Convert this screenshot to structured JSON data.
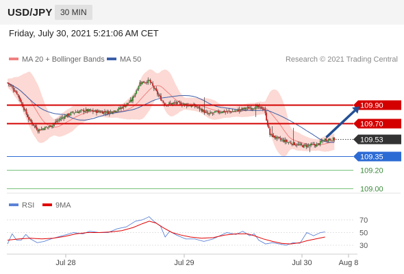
{
  "header": {
    "symbol": "USD/JPY",
    "timeframe": "30 MIN",
    "timestamp": "Friday, July 30, 2021 5:21:06 AM CET"
  },
  "colors": {
    "candle_up": "#2e8b2e",
    "candle_down": "#c42222",
    "bollinger_fill": "#fbd2cd",
    "ma20": "#f08080",
    "ma50": "#3b5ea8",
    "resistance": "#d40000",
    "pivot": "#2d6bd4",
    "support": "#4caf50",
    "arrow": "#234f94",
    "rsi": "#5b82d6",
    "rsi_ma": "#e00000",
    "last_price_tag": "#333333"
  },
  "chart_data": [
    {
      "type": "candlestick",
      "legend": [
        {
          "label": "MA 20 + Bollinger Bands",
          "color": "#f08080"
        },
        {
          "label": "MA 50",
          "color": "#3b5ea8"
        }
      ],
      "credit": "Research © 2021 Trading Central",
      "x_ticks": [
        "Jul 28",
        "Jul 29",
        "Jul 30",
        "Aug 8"
      ],
      "y_range": [
        108.95,
        110.5
      ],
      "last_price": 109.53,
      "levels": [
        {
          "value": 109.9,
          "label": "109.90",
          "kind": "resistance"
        },
        {
          "value": 109.7,
          "label": "109.70",
          "kind": "resistance"
        },
        {
          "value": 109.35,
          "label": "109.35",
          "kind": "pivot"
        },
        {
          "value": 109.2,
          "label": "109.20",
          "kind": "support"
        },
        {
          "value": 109.0,
          "label": "109.00",
          "kind": "support"
        }
      ],
      "close_path": [
        [
          0,
          110.14
        ],
        [
          8,
          110.03
        ],
        [
          18,
          109.75
        ],
        [
          26,
          109.63
        ],
        [
          36,
          109.67
        ],
        [
          46,
          109.76
        ],
        [
          56,
          109.82
        ],
        [
          66,
          109.84
        ],
        [
          76,
          109.83
        ],
        [
          86,
          109.82
        ],
        [
          96,
          109.86
        ],
        [
          106,
          109.95
        ],
        [
          113,
          110.14
        ],
        [
          121,
          110.16
        ],
        [
          128,
          110.02
        ],
        [
          134,
          109.91
        ],
        [
          144,
          109.92
        ],
        [
          154,
          109.9
        ],
        [
          162,
          109.88
        ],
        [
          171,
          109.8
        ],
        [
          182,
          109.83
        ],
        [
          192,
          109.83
        ],
        [
          202,
          109.86
        ],
        [
          212,
          109.88
        ],
        [
          219,
          109.86
        ],
        [
          224,
          109.58
        ],
        [
          232,
          109.53
        ],
        [
          242,
          109.49
        ],
        [
          252,
          109.46
        ],
        [
          264,
          109.47
        ],
        [
          271,
          109.53
        ]
      ],
      "trend_arrow": {
        "from": [
          271,
          109.53
        ],
        "to": [
          298,
          109.9
        ]
      }
    },
    {
      "type": "line",
      "name": "RSI",
      "legend": [
        {
          "label": "RSI",
          "color": "#5b82d6"
        },
        {
          "label": "9MA",
          "color": "#e00000"
        }
      ],
      "y_ticks": [
        "70",
        "50",
        "30"
      ],
      "y_range": [
        20,
        80
      ],
      "rsi": [
        [
          0,
          32
        ],
        [
          4,
          48
        ],
        [
          8,
          38
        ],
        [
          12,
          38
        ],
        [
          16,
          47
        ],
        [
          20,
          40
        ],
        [
          26,
          34
        ],
        [
          32,
          36
        ],
        [
          38,
          40
        ],
        [
          46,
          44
        ],
        [
          52,
          47
        ],
        [
          58,
          50
        ],
        [
          66,
          48
        ],
        [
          72,
          52
        ],
        [
          80,
          50
        ],
        [
          88,
          50
        ],
        [
          96,
          56
        ],
        [
          104,
          59
        ],
        [
          112,
          68
        ],
        [
          118,
          70
        ],
        [
          124,
          75
        ],
        [
          128,
          68
        ],
        [
          134,
          60
        ],
        [
          138,
          43
        ],
        [
          142,
          52
        ],
        [
          148,
          46
        ],
        [
          156,
          40
        ],
        [
          164,
          40
        ],
        [
          172,
          36
        ],
        [
          180,
          40
        ],
        [
          186,
          45
        ],
        [
          192,
          50
        ],
        [
          200,
          47
        ],
        [
          206,
          52
        ],
        [
          212,
          45
        ],
        [
          216,
          48
        ],
        [
          220,
          38
        ],
        [
          226,
          32
        ],
        [
          232,
          34
        ],
        [
          238,
          32
        ],
        [
          244,
          30
        ],
        [
          250,
          34
        ],
        [
          256,
          33
        ],
        [
          262,
          50
        ],
        [
          268,
          45
        ],
        [
          274,
          50
        ],
        [
          278,
          51
        ]
      ],
      "ma": [
        [
          0,
          38
        ],
        [
          10,
          40
        ],
        [
          20,
          41
        ],
        [
          30,
          40
        ],
        [
          40,
          41
        ],
        [
          50,
          44
        ],
        [
          60,
          48
        ],
        [
          70,
          50
        ],
        [
          80,
          50
        ],
        [
          90,
          51
        ],
        [
          100,
          53
        ],
        [
          110,
          58
        ],
        [
          118,
          64
        ],
        [
          124,
          68
        ],
        [
          130,
          65
        ],
        [
          136,
          58
        ],
        [
          144,
          50
        ],
        [
          152,
          46
        ],
        [
          160,
          43
        ],
        [
          170,
          41
        ],
        [
          180,
          42
        ],
        [
          190,
          46
        ],
        [
          200,
          48
        ],
        [
          210,
          48
        ],
        [
          216,
          45
        ],
        [
          224,
          40
        ],
        [
          232,
          36
        ],
        [
          240,
          33
        ],
        [
          248,
          32
        ],
        [
          256,
          34
        ],
        [
          262,
          37
        ],
        [
          270,
          40
        ],
        [
          278,
          43
        ]
      ]
    }
  ]
}
